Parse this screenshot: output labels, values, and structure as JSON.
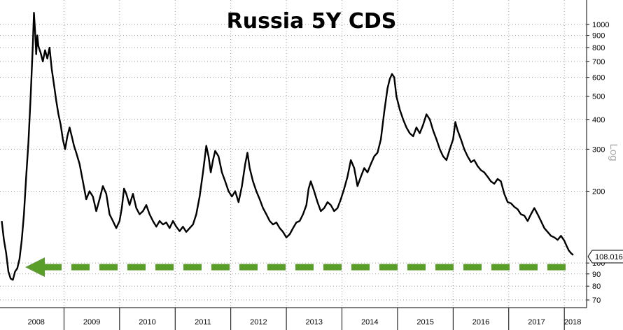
{
  "chart_data": {
    "type": "line",
    "title": "Russia 5Y CDS",
    "scale": "log",
    "scale_label": "Log",
    "xlabel": "",
    "ylabel": "",
    "ylim": [
      65,
      1200
    ],
    "y_ticks": [
      70,
      80,
      90,
      100,
      200,
      300,
      400,
      500,
      600,
      700,
      800,
      900,
      1000
    ],
    "y_tick_labels": [
      "70",
      "80",
      "90",
      "100",
      "200",
      "300",
      "400",
      "500",
      "600",
      "700",
      "800",
      "900",
      "1000"
    ],
    "x_ticks": [
      "2008",
      "2009",
      "2010",
      "2011",
      "2012",
      "2013",
      "2014",
      "2015",
      "2016",
      "2017",
      "2018"
    ],
    "x_range": [
      2008.0,
      2018.3
    ],
    "grid": true,
    "last_value": "108.016",
    "series": [
      {
        "color": "#000000",
        "points": [
          [
            2007.88,
            150
          ],
          [
            2007.92,
            125
          ],
          [
            2007.96,
            110
          ],
          [
            2008.0,
            92
          ],
          [
            2008.04,
            86
          ],
          [
            2008.08,
            85
          ],
          [
            2008.12,
            92
          ],
          [
            2008.16,
            95
          ],
          [
            2008.2,
            104
          ],
          [
            2008.24,
            125
          ],
          [
            2008.28,
            160
          ],
          [
            2008.32,
            230
          ],
          [
            2008.36,
            320
          ],
          [
            2008.4,
            500
          ],
          [
            2008.44,
            820
          ],
          [
            2008.46,
            1120
          ],
          [
            2008.48,
            940
          ],
          [
            2008.5,
            750
          ],
          [
            2008.52,
            900
          ],
          [
            2008.54,
            810
          ],
          [
            2008.58,
            760
          ],
          [
            2008.62,
            700
          ],
          [
            2008.66,
            780
          ],
          [
            2008.7,
            720
          ],
          [
            2008.74,
            800
          ],
          [
            2008.78,
            650
          ],
          [
            2008.82,
            560
          ],
          [
            2008.86,
            480
          ],
          [
            2008.9,
            420
          ],
          [
            2008.94,
            380
          ],
          [
            2008.98,
            330
          ],
          [
            2009.02,
            300
          ],
          [
            2009.06,
            340
          ],
          [
            2009.1,
            370
          ],
          [
            2009.14,
            340
          ],
          [
            2009.18,
            310
          ],
          [
            2009.22,
            290
          ],
          [
            2009.28,
            260
          ],
          [
            2009.34,
            220
          ],
          [
            2009.4,
            185
          ],
          [
            2009.46,
            200
          ],
          [
            2009.52,
            190
          ],
          [
            2009.58,
            165
          ],
          [
            2009.64,
            185
          ],
          [
            2009.7,
            210
          ],
          [
            2009.76,
            195
          ],
          [
            2009.82,
            160
          ],
          [
            2009.88,
            150
          ],
          [
            2009.94,
            140
          ],
          [
            2010.0,
            150
          ],
          [
            2010.04,
            170
          ],
          [
            2010.08,
            205
          ],
          [
            2010.12,
            195
          ],
          [
            2010.18,
            175
          ],
          [
            2010.24,
            195
          ],
          [
            2010.3,
            170
          ],
          [
            2010.36,
            160
          ],
          [
            2010.42,
            165
          ],
          [
            2010.48,
            175
          ],
          [
            2010.54,
            160
          ],
          [
            2010.6,
            150
          ],
          [
            2010.66,
            142
          ],
          [
            2010.72,
            150
          ],
          [
            2010.78,
            145
          ],
          [
            2010.84,
            148
          ],
          [
            2010.9,
            140
          ],
          [
            2010.96,
            150
          ],
          [
            2011.02,
            142
          ],
          [
            2011.08,
            136
          ],
          [
            2011.14,
            142
          ],
          [
            2011.2,
            135
          ],
          [
            2011.26,
            140
          ],
          [
            2011.32,
            145
          ],
          [
            2011.38,
            160
          ],
          [
            2011.44,
            190
          ],
          [
            2011.5,
            240
          ],
          [
            2011.56,
            310
          ],
          [
            2011.6,
            280
          ],
          [
            2011.64,
            240
          ],
          [
            2011.68,
            270
          ],
          [
            2011.72,
            295
          ],
          [
            2011.78,
            280
          ],
          [
            2011.84,
            240
          ],
          [
            2011.9,
            220
          ],
          [
            2011.96,
            200
          ],
          [
            2012.02,
            190
          ],
          [
            2012.08,
            200
          ],
          [
            2012.14,
            180
          ],
          [
            2012.2,
            210
          ],
          [
            2012.26,
            260
          ],
          [
            2012.3,
            290
          ],
          [
            2012.34,
            250
          ],
          [
            2012.4,
            220
          ],
          [
            2012.46,
            200
          ],
          [
            2012.52,
            185
          ],
          [
            2012.58,
            170
          ],
          [
            2012.64,
            160
          ],
          [
            2012.7,
            150
          ],
          [
            2012.76,
            145
          ],
          [
            2012.82,
            148
          ],
          [
            2012.88,
            140
          ],
          [
            2012.94,
            135
          ],
          [
            2013.0,
            128
          ],
          [
            2013.06,
            132
          ],
          [
            2013.12,
            140
          ],
          [
            2013.18,
            148
          ],
          [
            2013.24,
            150
          ],
          [
            2013.3,
            160
          ],
          [
            2013.36,
            175
          ],
          [
            2013.4,
            205
          ],
          [
            2013.44,
            220
          ],
          [
            2013.5,
            200
          ],
          [
            2013.56,
            180
          ],
          [
            2013.62,
            165
          ],
          [
            2013.68,
            170
          ],
          [
            2013.74,
            180
          ],
          [
            2013.8,
            175
          ],
          [
            2013.86,
            165
          ],
          [
            2013.92,
            170
          ],
          [
            2013.98,
            185
          ],
          [
            2014.04,
            205
          ],
          [
            2014.1,
            230
          ],
          [
            2014.16,
            270
          ],
          [
            2014.22,
            250
          ],
          [
            2014.28,
            210
          ],
          [
            2014.34,
            230
          ],
          [
            2014.4,
            250
          ],
          [
            2014.46,
            240
          ],
          [
            2014.52,
            260
          ],
          [
            2014.58,
            280
          ],
          [
            2014.64,
            290
          ],
          [
            2014.7,
            330
          ],
          [
            2014.76,
            430
          ],
          [
            2014.82,
            540
          ],
          [
            2014.86,
            590
          ],
          [
            2014.9,
            620
          ],
          [
            2014.94,
            600
          ],
          [
            2014.98,
            500
          ],
          [
            2015.04,
            440
          ],
          [
            2015.1,
            400
          ],
          [
            2015.16,
            370
          ],
          [
            2015.22,
            350
          ],
          [
            2015.28,
            340
          ],
          [
            2015.34,
            370
          ],
          [
            2015.4,
            350
          ],
          [
            2015.46,
            380
          ],
          [
            2015.52,
            420
          ],
          [
            2015.58,
            400
          ],
          [
            2015.64,
            360
          ],
          [
            2015.7,
            330
          ],
          [
            2015.76,
            300
          ],
          [
            2015.82,
            280
          ],
          [
            2015.88,
            270
          ],
          [
            2015.94,
            300
          ],
          [
            2016.0,
            330
          ],
          [
            2016.04,
            390
          ],
          [
            2016.08,
            360
          ],
          [
            2016.14,
            330
          ],
          [
            2016.2,
            300
          ],
          [
            2016.26,
            280
          ],
          [
            2016.32,
            265
          ],
          [
            2016.38,
            270
          ],
          [
            2016.44,
            255
          ],
          [
            2016.5,
            245
          ],
          [
            2016.56,
            240
          ],
          [
            2016.62,
            230
          ],
          [
            2016.68,
            220
          ],
          [
            2016.74,
            215
          ],
          [
            2016.8,
            225
          ],
          [
            2016.86,
            220
          ],
          [
            2016.92,
            195
          ],
          [
            2016.98,
            180
          ],
          [
            2017.04,
            178
          ],
          [
            2017.1,
            172
          ],
          [
            2017.16,
            168
          ],
          [
            2017.22,
            160
          ],
          [
            2017.28,
            158
          ],
          [
            2017.34,
            150
          ],
          [
            2017.4,
            160
          ],
          [
            2017.46,
            170
          ],
          [
            2017.52,
            160
          ],
          [
            2017.58,
            150
          ],
          [
            2017.64,
            140
          ],
          [
            2017.7,
            135
          ],
          [
            2017.76,
            130
          ],
          [
            2017.82,
            128
          ],
          [
            2017.88,
            125
          ],
          [
            2017.94,
            130
          ],
          [
            2018.0,
            124
          ],
          [
            2018.04,
            118
          ],
          [
            2018.08,
            113
          ],
          [
            2018.12,
            110
          ],
          [
            2018.16,
            108
          ]
        ]
      }
    ],
    "reference_line": {
      "value": 100,
      "color": "#5a9e2a"
    }
  }
}
